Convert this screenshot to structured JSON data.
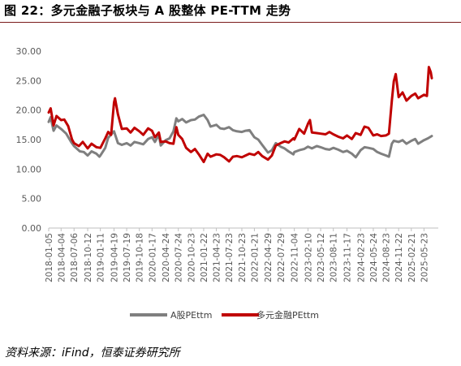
{
  "title": "图 22：多元金融子板块与 A 股整体 PE-TTM 走势",
  "source": "资料来源：iFind，恒泰证券研究所",
  "colors": {
    "a_share": "#7f7f7f",
    "multi_finance": "#c00000",
    "title_rule": "#7a1b1b"
  },
  "chart_data": {
    "type": "line",
    "title": "",
    "xlabel": "",
    "ylabel": "",
    "ylim": [
      0,
      30
    ],
    "yticks": [
      "0.00",
      "5.00",
      "10.00",
      "15.00",
      "20.00",
      "25.00",
      "30.00"
    ],
    "xticks": [
      "2018-01-05",
      "2018-04-04",
      "2018-07-06",
      "2018-10-12",
      "2019-01-11",
      "2019-04-19",
      "2019-07-19",
      "2019-10-18",
      "2020-01-17",
      "2020-04-24",
      "2020-07-24",
      "2020-10-23",
      "2021-01-22",
      "2021-04-23",
      "2021-07-23",
      "2021-10-23",
      "2022-01-21",
      "2022-04-29",
      "2022-07-29",
      "2022-11-04",
      "2023-02-10",
      "2023-05-12",
      "2023-08-11",
      "2023-11-17",
      "2024-02-23",
      "2024-05-24",
      "2024-08-23",
      "2024-11-22",
      "2025-02-21",
      "2025-05-23"
    ],
    "grid": false,
    "legend": "bottom",
    "series": [
      {
        "name": "A股PEttm",
        "color": "#7f7f7f",
        "points": [
          [
            "2018-01-05",
            18.0
          ],
          [
            "2018-01-19",
            18.8
          ],
          [
            "2018-02-09",
            16.5
          ],
          [
            "2018-03-02",
            17.4
          ],
          [
            "2018-04-04",
            16.8
          ],
          [
            "2018-05-11",
            16.0
          ],
          [
            "2018-06-15",
            14.6
          ],
          [
            "2018-07-06",
            13.9
          ],
          [
            "2018-08-17",
            13.0
          ],
          [
            "2018-09-14",
            12.9
          ],
          [
            "2018-10-12",
            12.3
          ],
          [
            "2018-11-09",
            13.0
          ],
          [
            "2018-12-14",
            12.6
          ],
          [
            "2019-01-04",
            12.1
          ],
          [
            "2019-01-11",
            12.3
          ],
          [
            "2019-02-15",
            13.6
          ],
          [
            "2019-03-08",
            15.3
          ],
          [
            "2019-04-19",
            16.4
          ],
          [
            "2019-05-17",
            14.4
          ],
          [
            "2019-06-14",
            14.1
          ],
          [
            "2019-07-19",
            14.4
          ],
          [
            "2019-08-16",
            14.0
          ],
          [
            "2019-09-13",
            14.6
          ],
          [
            "2019-10-18",
            14.4
          ],
          [
            "2019-11-15",
            14.2
          ],
          [
            "2019-12-20",
            15.1
          ],
          [
            "2020-01-17",
            15.4
          ],
          [
            "2020-02-07",
            14.6
          ],
          [
            "2020-03-06",
            15.8
          ],
          [
            "2020-03-20",
            14.0
          ],
          [
            "2020-04-24",
            14.9
          ],
          [
            "2020-05-22",
            15.2
          ],
          [
            "2020-06-19",
            16.4
          ],
          [
            "2020-07-10",
            18.6
          ],
          [
            "2020-07-24",
            18.1
          ],
          [
            "2020-08-21",
            18.5
          ],
          [
            "2020-09-18",
            17.9
          ],
          [
            "2020-10-23",
            18.3
          ],
          [
            "2020-11-20",
            18.4
          ],
          [
            "2020-12-18",
            18.9
          ],
          [
            "2021-01-22",
            19.2
          ],
          [
            "2021-02-19",
            18.3
          ],
          [
            "2021-03-12",
            17.2
          ],
          [
            "2021-04-23",
            17.5
          ],
          [
            "2021-05-21",
            16.9
          ],
          [
            "2021-06-18",
            16.8
          ],
          [
            "2021-07-23",
            17.1
          ],
          [
            "2021-08-20",
            16.6
          ],
          [
            "2021-09-17",
            16.4
          ],
          [
            "2021-10-23",
            16.3
          ],
          [
            "2021-11-19",
            16.5
          ],
          [
            "2021-12-17",
            16.6
          ],
          [
            "2022-01-21",
            15.4
          ],
          [
            "2022-02-18",
            15.0
          ],
          [
            "2022-03-18",
            14.1
          ],
          [
            "2022-04-29",
            12.8
          ],
          [
            "2022-05-27",
            13.2
          ],
          [
            "2022-06-24",
            14.4
          ],
          [
            "2022-07-29",
            13.8
          ],
          [
            "2022-08-26",
            13.5
          ],
          [
            "2022-09-23",
            13.0
          ],
          [
            "2022-10-28",
            12.5
          ],
          [
            "2022-11-04",
            12.9
          ],
          [
            "2022-12-09",
            13.2
          ],
          [
            "2023-01-13",
            13.4
          ],
          [
            "2023-02-10",
            13.8
          ],
          [
            "2023-03-10",
            13.5
          ],
          [
            "2023-04-14",
            13.9
          ],
          [
            "2023-05-12",
            13.7
          ],
          [
            "2023-06-16",
            13.4
          ],
          [
            "2023-07-14",
            13.3
          ],
          [
            "2023-08-11",
            13.6
          ],
          [
            "2023-09-15",
            13.3
          ],
          [
            "2023-10-20",
            12.9
          ],
          [
            "2023-11-17",
            13.1
          ],
          [
            "2023-12-22",
            12.6
          ],
          [
            "2024-01-19",
            12.0
          ],
          [
            "2024-02-23",
            13.2
          ],
          [
            "2024-03-22",
            13.7
          ],
          [
            "2024-04-19",
            13.6
          ],
          [
            "2024-05-24",
            13.4
          ],
          [
            "2024-06-21",
            12.9
          ],
          [
            "2024-07-19",
            12.6
          ],
          [
            "2024-08-23",
            12.3
          ],
          [
            "2024-09-13",
            12.1
          ],
          [
            "2024-10-04",
            14.3
          ],
          [
            "2024-10-18",
            14.8
          ],
          [
            "2024-11-22",
            14.6
          ],
          [
            "2024-12-20",
            14.9
          ],
          [
            "2025-01-17",
            14.3
          ],
          [
            "2025-02-21",
            14.8
          ],
          [
            "2025-03-21",
            15.1
          ],
          [
            "2025-04-11",
            14.3
          ],
          [
            "2025-05-23",
            14.9
          ],
          [
            "2025-06-20",
            15.2
          ],
          [
            "2025-07-18",
            15.6
          ]
        ]
      },
      {
        "name": "多元金融PEttm",
        "color": "#c00000",
        "points": [
          [
            "2018-01-05",
            19.6
          ],
          [
            "2018-01-19",
            20.3
          ],
          [
            "2018-02-09",
            17.4
          ],
          [
            "2018-03-02",
            19.0
          ],
          [
            "2018-04-04",
            18.3
          ],
          [
            "2018-04-27",
            18.4
          ],
          [
            "2018-05-25",
            17.3
          ],
          [
            "2018-06-22",
            15.0
          ],
          [
            "2018-07-06",
            14.4
          ],
          [
            "2018-08-10",
            13.9
          ],
          [
            "2018-09-07",
            14.6
          ],
          [
            "2018-10-12",
            13.5
          ],
          [
            "2018-11-09",
            14.3
          ],
          [
            "2018-12-14",
            13.7
          ],
          [
            "2019-01-11",
            13.6
          ],
          [
            "2019-02-15",
            15.2
          ],
          [
            "2019-03-08",
            16.3
          ],
          [
            "2019-03-29",
            15.8
          ],
          [
            "2019-04-19",
            21.3
          ],
          [
            "2019-04-26",
            22.0
          ],
          [
            "2019-05-17",
            19.3
          ],
          [
            "2019-06-14",
            16.8
          ],
          [
            "2019-07-19",
            16.9
          ],
          [
            "2019-08-16",
            16.2
          ],
          [
            "2019-09-13",
            17.0
          ],
          [
            "2019-10-18",
            16.4
          ],
          [
            "2019-11-15",
            15.8
          ],
          [
            "2019-12-20",
            16.9
          ],
          [
            "2020-01-17",
            16.5
          ],
          [
            "2020-02-07",
            15.4
          ],
          [
            "2020-03-06",
            16.2
          ],
          [
            "2020-03-20",
            14.6
          ],
          [
            "2020-04-24",
            14.7
          ],
          [
            "2020-05-22",
            14.4
          ],
          [
            "2020-06-19",
            14.3
          ],
          [
            "2020-07-10",
            17.1
          ],
          [
            "2020-07-24",
            15.8
          ],
          [
            "2020-08-21",
            15.1
          ],
          [
            "2020-09-18",
            13.6
          ],
          [
            "2020-10-23",
            12.9
          ],
          [
            "2020-11-20",
            13.4
          ],
          [
            "2020-12-18",
            12.5
          ],
          [
            "2021-01-22",
            11.2
          ],
          [
            "2021-02-19",
            12.6
          ],
          [
            "2021-03-12",
            12.1
          ],
          [
            "2021-04-23",
            12.5
          ],
          [
            "2021-05-21",
            12.4
          ],
          [
            "2021-06-18",
            12.0
          ],
          [
            "2021-07-23",
            11.3
          ],
          [
            "2021-08-20",
            12.1
          ],
          [
            "2021-09-17",
            12.2
          ],
          [
            "2021-10-23",
            12.0
          ],
          [
            "2021-11-19",
            12.3
          ],
          [
            "2021-12-17",
            12.6
          ],
          [
            "2022-01-21",
            12.4
          ],
          [
            "2022-02-18",
            12.9
          ],
          [
            "2022-03-18",
            12.2
          ],
          [
            "2022-04-29",
            11.6
          ],
          [
            "2022-05-27",
            12.3
          ],
          [
            "2022-06-24",
            14.0
          ],
          [
            "2022-07-29",
            14.4
          ],
          [
            "2022-08-26",
            14.7
          ],
          [
            "2022-09-23",
            14.5
          ],
          [
            "2022-10-28",
            15.2
          ],
          [
            "2022-11-04",
            15.0
          ],
          [
            "2022-12-09",
            16.8
          ],
          [
            "2023-01-13",
            16.0
          ],
          [
            "2023-02-10",
            17.7
          ],
          [
            "2023-02-24",
            18.3
          ],
          [
            "2023-03-10",
            16.2
          ],
          [
            "2023-04-14",
            16.1
          ],
          [
            "2023-05-12",
            16.0
          ],
          [
            "2023-06-16",
            15.9
          ],
          [
            "2023-07-14",
            16.3
          ],
          [
            "2023-08-11",
            15.9
          ],
          [
            "2023-09-15",
            15.5
          ],
          [
            "2023-10-20",
            15.2
          ],
          [
            "2023-11-17",
            15.7
          ],
          [
            "2023-12-22",
            15.1
          ],
          [
            "2024-01-19",
            16.1
          ],
          [
            "2024-02-23",
            15.8
          ],
          [
            "2024-03-22",
            17.2
          ],
          [
            "2024-04-19",
            17.0
          ],
          [
            "2024-05-24",
            15.7
          ],
          [
            "2024-06-21",
            15.9
          ],
          [
            "2024-07-19",
            15.6
          ],
          [
            "2024-08-23",
            15.7
          ],
          [
            "2024-09-13",
            16.0
          ],
          [
            "2024-10-04",
            21.6
          ],
          [
            "2024-10-18",
            24.9
          ],
          [
            "2024-11-01",
            26.1
          ],
          [
            "2024-11-22",
            22.2
          ],
          [
            "2024-12-20",
            23.0
          ],
          [
            "2025-01-17",
            21.6
          ],
          [
            "2025-02-21",
            22.4
          ],
          [
            "2025-03-21",
            22.8
          ],
          [
            "2025-04-11",
            22.0
          ],
          [
            "2025-05-23",
            22.6
          ],
          [
            "2025-06-13",
            22.4
          ],
          [
            "2025-06-27",
            27.3
          ],
          [
            "2025-07-11",
            26.4
          ],
          [
            "2025-07-18",
            25.4
          ]
        ]
      }
    ]
  }
}
